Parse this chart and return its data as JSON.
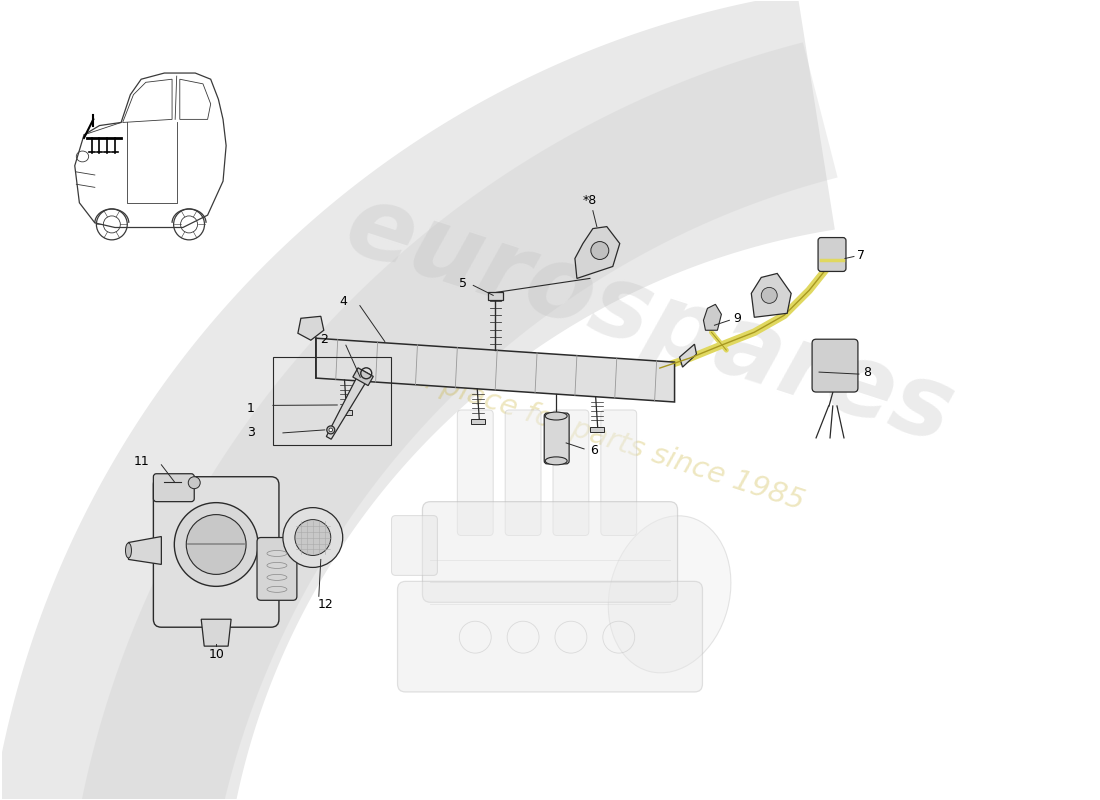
{
  "background_color": "#ffffff",
  "line_color": "#2a2a2a",
  "part_line_color": "#444444",
  "light_fill": "#e8e8e8",
  "mid_fill": "#d0d0d0",
  "dark_fill": "#aaaaaa",
  "accent_yellow": "#d4c840",
  "accent_yellow_fill": "#e0d860",
  "watermark_color": "#cccccc",
  "watermark_alpha": 0.35,
  "swoosh_color": "#c8c8c8",
  "swoosh_alpha": 0.4,
  "label_fontsize": 9,
  "car_xoff": 0.7,
  "car_yoff": 5.7,
  "car_scale": 1.55
}
